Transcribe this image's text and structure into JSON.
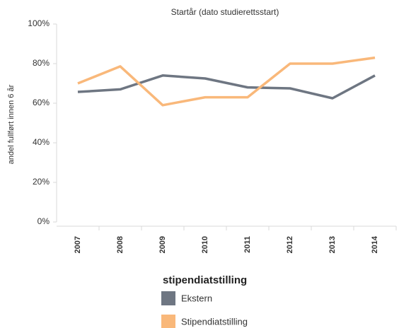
{
  "chart_data": {
    "type": "line",
    "x_label": "Startår (dato studierettsstart)",
    "y_label": "andel fullført innen 6 år",
    "legend_title": "stipendiatstilling",
    "categories": [
      "2007",
      "2008",
      "2009",
      "2010",
      "2011",
      "2012",
      "2013",
      "2014"
    ],
    "series": [
      {
        "name": "Ekstern",
        "color": "#6e7682",
        "values": [
          65.7,
          67,
          74,
          72.5,
          68,
          67.5,
          62.5,
          74
        ]
      },
      {
        "name": "Stipendiatstilling",
        "color": "#f9b87a",
        "values": [
          70,
          78.6,
          59,
          63,
          63,
          80,
          80,
          83
        ]
      }
    ],
    "ylim": [
      0,
      100
    ],
    "yticks": [
      {
        "value": 0,
        "label": "0%"
      },
      {
        "value": 20,
        "label": "20%"
      },
      {
        "value": 40,
        "label": "40%"
      },
      {
        "value": 60,
        "label": "60%"
      },
      {
        "value": 80,
        "label": "80%"
      },
      {
        "value": 100,
        "label": "100%"
      }
    ]
  }
}
